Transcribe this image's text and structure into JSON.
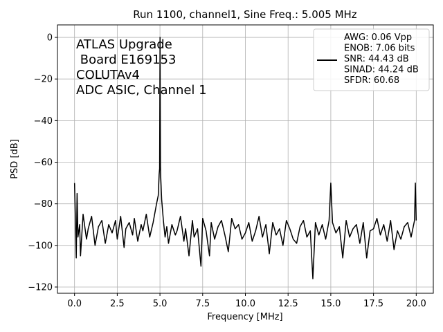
{
  "chart_data": {
    "type": "line",
    "title": "Run 1100, channel1, Sine Freq.: 5.005 MHz",
    "xlabel": "Frequency [MHz]",
    "ylabel": "PSD [dB]",
    "xlim": [
      -1.0,
      21.0
    ],
    "ylim": [
      -123,
      6
    ],
    "xticks": [
      0.0,
      2.5,
      5.0,
      7.5,
      10.0,
      12.5,
      15.0,
      17.5,
      20.0
    ],
    "xtick_labels": [
      "0.0",
      "2.5",
      "5.0",
      "7.5",
      "10.0",
      "12.5",
      "15.0",
      "17.5",
      "20.0"
    ],
    "yticks": [
      0,
      -20,
      -40,
      -60,
      -80,
      -100,
      -120
    ],
    "ytick_labels": [
      "0",
      "−20",
      "−40",
      "−60",
      "−80",
      "−100",
      "−120"
    ],
    "grid": true,
    "line_color": "#000000",
    "annotation_lines": [
      "ATLAS Upgrade",
      " Board E169153",
      "COLUTAv4",
      "ADC ASIC, Channel 1"
    ],
    "legend": {
      "placement": "top-right",
      "lines": [
        "AWG: 0.06 Vpp",
        "ENOB: 7.06 bits",
        "SNR: 44.43 dB",
        "SINAD: 44.24 dB",
        "SFDR: 60.68"
      ]
    },
    "series": [
      {
        "x": [
          0,
          0.05,
          0.1,
          0.15,
          0.2,
          0.3,
          0.35,
          0.5,
          0.7,
          0.8,
          1.0,
          1.2,
          1.4,
          1.6,
          1.8,
          2.0,
          2.2,
          2.4,
          2.5,
          2.7,
          2.9,
          3.0,
          3.2,
          3.4,
          3.5,
          3.7,
          3.9,
          4.0,
          4.2,
          4.4,
          4.6,
          4.8,
          4.9,
          4.95,
          4.98,
          5.005,
          5.03,
          5.05,
          5.1,
          5.2,
          5.3,
          5.4,
          5.5,
          5.7,
          5.9,
          6.0,
          6.2,
          6.4,
          6.5,
          6.7,
          6.9,
          7.0,
          7.2,
          7.4,
          7.5,
          7.7,
          7.9,
          8.0,
          8.2,
          8.4,
          8.6,
          8.8,
          9.0,
          9.2,
          9.4,
          9.6,
          9.8,
          10.0,
          10.2,
          10.4,
          10.6,
          10.8,
          11.0,
          11.2,
          11.4,
          11.6,
          11.8,
          12.0,
          12.2,
          12.4,
          12.6,
          12.8,
          13.0,
          13.2,
          13.4,
          13.6,
          13.8,
          13.95,
          14.1,
          14.3,
          14.5,
          14.7,
          14.9,
          15.0,
          15.1,
          15.3,
          15.5,
          15.7,
          15.9,
          16.1,
          16.3,
          16.5,
          16.7,
          16.9,
          17.1,
          17.3,
          17.5,
          17.7,
          17.9,
          18.1,
          18.3,
          18.5,
          18.7,
          18.9,
          19.1,
          19.3,
          19.5,
          19.7,
          19.9,
          19.95,
          20.0
        ],
        "y": [
          -70,
          -87,
          -106,
          -75,
          -96,
          -90,
          -105,
          -85,
          -97,
          -92,
          -86,
          -100,
          -91,
          -88,
          -99,
          -90,
          -94,
          -88,
          -97,
          -86,
          -101,
          -92,
          -89,
          -95,
          -87,
          -98,
          -90,
          -93,
          -85,
          -96,
          -89,
          -80,
          -76,
          -66,
          -63,
          0,
          -62,
          -68,
          -78,
          -88,
          -96,
          -91,
          -99,
          -90,
          -95,
          -93,
          -86,
          -98,
          -92,
          -105,
          -88,
          -96,
          -92,
          -110,
          -87,
          -93,
          -105,
          -89,
          -97,
          -91,
          -88,
          -95,
          -103,
          -87,
          -92,
          -90,
          -97,
          -94,
          -89,
          -98,
          -93,
          -86,
          -96,
          -90,
          -104,
          -89,
          -95,
          -92,
          -100,
          -88,
          -92,
          -97,
          -99,
          -91,
          -88,
          -96,
          -93,
          -116,
          -89,
          -95,
          -90,
          -97,
          -88,
          -70,
          -89,
          -94,
          -91,
          -106,
          -88,
          -96,
          -92,
          -90,
          -99,
          -89,
          -106,
          -93,
          -92,
          -87,
          -95,
          -90,
          -98,
          -88,
          -102,
          -93,
          -97,
          -91,
          -89,
          -96,
          -88,
          -70,
          -88
        ]
      }
    ]
  }
}
